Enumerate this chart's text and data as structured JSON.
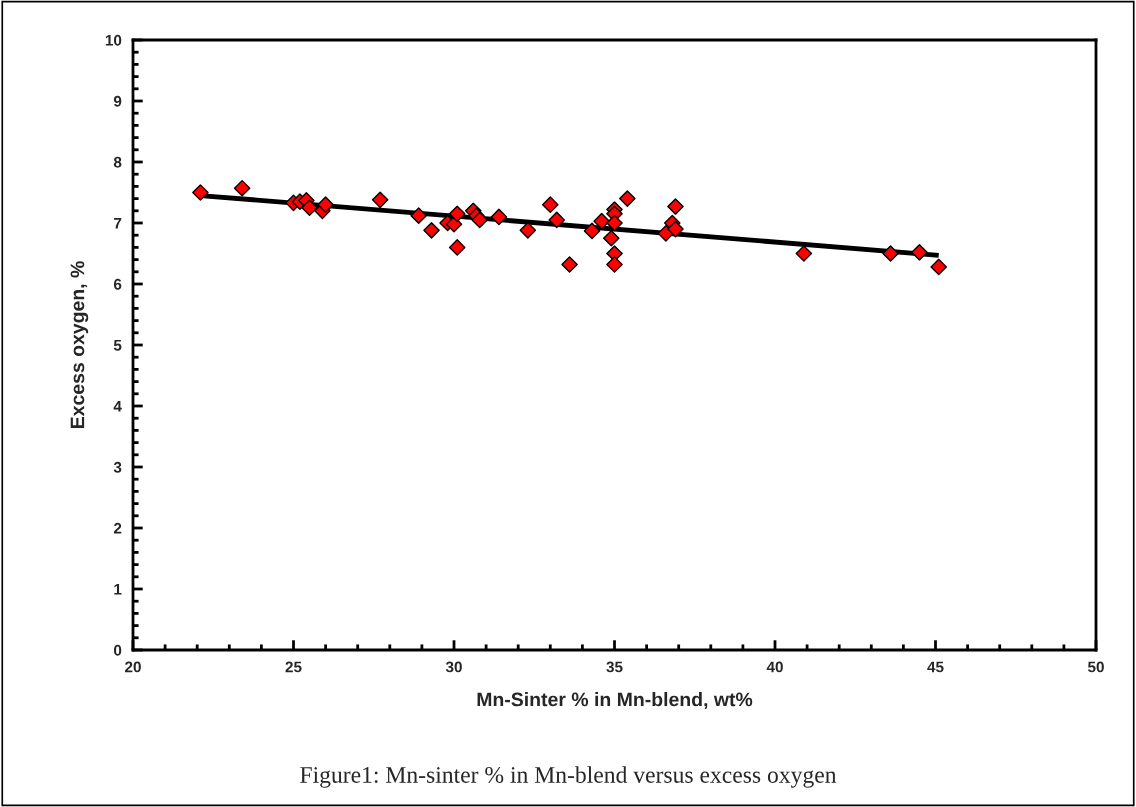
{
  "chart_data": {
    "type": "scatter",
    "xlabel": "Mn-Sinter % in Mn-blend, wt%",
    "ylabel": "Excess oxygen, %",
    "annotations": [
      "Figure1: Mn-sinter % in Mn-blend versus excess oxygen"
    ],
    "marker": "diamond",
    "grid": false,
    "xlim": [
      20,
      50
    ],
    "ylim": [
      0,
      10
    ],
    "xticks": [
      20,
      {
        "value": 21,
        "label": null
      },
      {
        "value": 22,
        "label": null
      },
      {
        "value": 23,
        "label": null
      },
      {
        "value": 24,
        "label": null
      },
      25,
      {
        "value": 26,
        "label": null
      },
      {
        "value": 27,
        "label": null
      },
      {
        "value": 28,
        "label": null
      },
      {
        "value": 29,
        "label": null
      },
      30,
      {
        "value": 31,
        "label": null
      },
      {
        "value": 32,
        "label": null
      },
      {
        "value": 33,
        "label": null
      },
      {
        "value": 34,
        "label": null
      },
      35,
      {
        "value": 36,
        "label": null
      },
      {
        "value": 37,
        "label": null
      },
      {
        "value": 38,
        "label": null
      },
      {
        "value": 39,
        "label": null
      },
      40,
      {
        "value": 41,
        "label": null
      },
      {
        "value": 42,
        "label": null
      },
      {
        "value": 43,
        "label": null
      },
      {
        "value": 44,
        "label": null
      },
      45,
      {
        "value": 46,
        "label": null
      },
      {
        "value": 47,
        "label": null
      },
      {
        "value": 48,
        "label": null
      },
      {
        "value": 49,
        "label": null
      },
      50
    ],
    "yticks": [
      0,
      {
        "value": 0.2,
        "label": null
      },
      {
        "value": 0.4,
        "label": null
      },
      {
        "value": 0.6,
        "label": null
      },
      {
        "value": 0.8,
        "label": null
      },
      1,
      {
        "value": 1.2,
        "label": null
      },
      {
        "value": 1.4,
        "label": null
      },
      {
        "value": 1.6,
        "label": null
      },
      {
        "value": 1.8,
        "label": null
      },
      2,
      {
        "value": 2.2,
        "label": null
      },
      {
        "value": 2.4,
        "label": null
      },
      {
        "value": 2.6,
        "label": null
      },
      {
        "value": 2.8,
        "label": null
      },
      3,
      {
        "value": 3.2,
        "label": null
      },
      {
        "value": 3.4,
        "label": null
      },
      {
        "value": 3.6,
        "label": null
      },
      {
        "value": 3.8,
        "label": null
      },
      4,
      {
        "value": 4.2,
        "label": null
      },
      {
        "value": 4.4,
        "label": null
      },
      {
        "value": 4.6,
        "label": null
      },
      {
        "value": 4.8,
        "label": null
      },
      5,
      {
        "value": 5.2,
        "label": null
      },
      {
        "value": 5.4,
        "label": null
      },
      {
        "value": 5.6,
        "label": null
      },
      {
        "value": 5.8,
        "label": null
      },
      6,
      {
        "value": 6.2,
        "label": null
      },
      {
        "value": 6.4,
        "label": null
      },
      {
        "value": 6.6,
        "label": null
      },
      {
        "value": 6.8,
        "label": null
      },
      7,
      {
        "value": 7.2,
        "label": null
      },
      {
        "value": 7.4,
        "label": null
      },
      {
        "value": 7.6,
        "label": null
      },
      {
        "value": 7.8,
        "label": null
      },
      8,
      {
        "value": 8.2,
        "label": null
      },
      {
        "value": 8.4,
        "label": null
      },
      {
        "value": 8.6,
        "label": null
      },
      {
        "value": 8.8,
        "label": null
      },
      9,
      {
        "value": 9.2,
        "label": null
      },
      {
        "value": 9.4,
        "label": null
      },
      {
        "value": 9.6,
        "label": null
      },
      {
        "value": 9.8,
        "label": null
      },
      10
    ],
    "series": [
      {
        "color": "#ff0000",
        "x": [
          22.1,
          23.4,
          25.0,
          25.2,
          25.4,
          25.5,
          25.9,
          26.0,
          27.7,
          28.9,
          29.3,
          29.8,
          30.0,
          30.1,
          30.1,
          30.6,
          30.7,
          30.8,
          31.4,
          32.3,
          33.0,
          33.2,
          33.6,
          34.3,
          34.6,
          34.9,
          35.0,
          35.0,
          35.0,
          35.0,
          35.0,
          35.4,
          36.6,
          36.8,
          36.9,
          36.9,
          40.9,
          43.6,
          44.5,
          45.1
        ],
        "values": [
          7.5,
          7.57,
          7.33,
          7.35,
          7.37,
          7.25,
          7.2,
          7.3,
          7.38,
          7.12,
          6.88,
          7.0,
          6.98,
          7.15,
          6.6,
          7.2,
          7.12,
          7.05,
          7.1,
          6.88,
          7.3,
          7.05,
          6.32,
          6.87,
          7.03,
          6.75,
          7.22,
          7.15,
          7.0,
          6.5,
          6.32,
          7.4,
          6.83,
          7.0,
          6.9,
          7.27,
          6.5,
          6.5,
          6.52,
          6.28
        ]
      },
      {
        "type": "line",
        "color": "#000000",
        "marker": "none",
        "x": [
          22.1,
          45.1
        ],
        "values": [
          7.45,
          6.47
        ]
      }
    ]
  }
}
